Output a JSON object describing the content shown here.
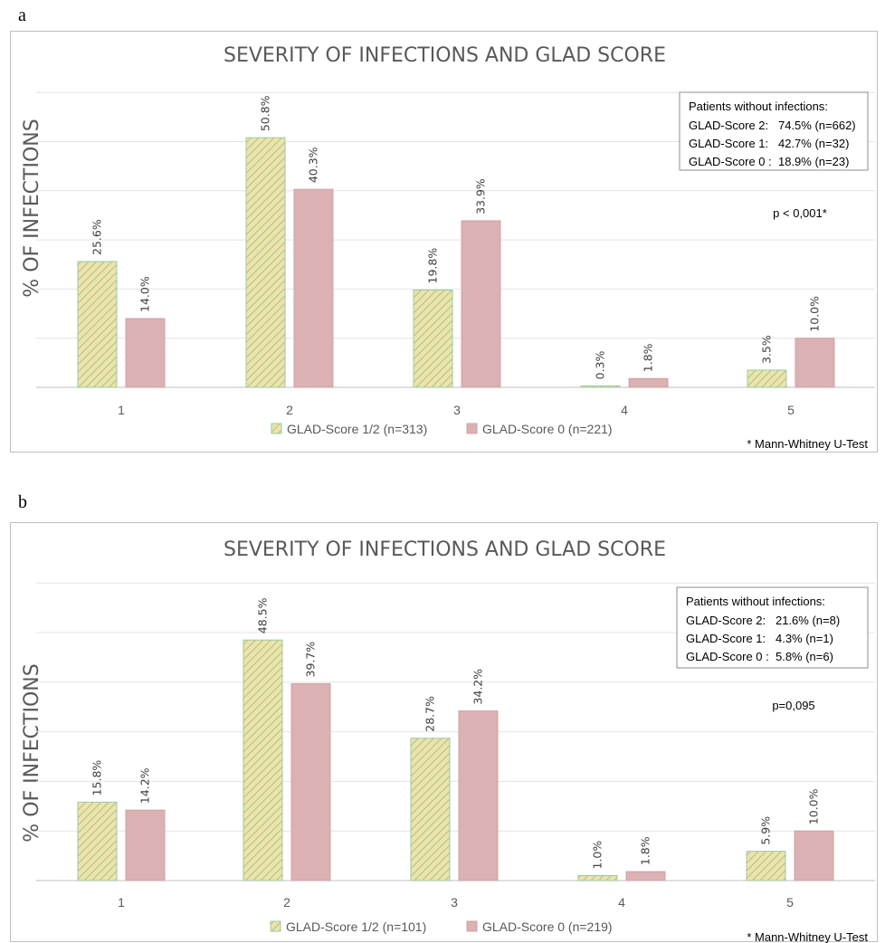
{
  "chart_data": [
    {
      "panel": "a",
      "type": "bar",
      "title": "SEVERITY OF INFECTIONS AND GLAD SCORE",
      "ylabel": "% OF INFECTIONS",
      "xlabel": "",
      "ylim": [
        0,
        60
      ],
      "grid": true,
      "legend_position": "bottom",
      "categories": [
        "1",
        "2",
        "3",
        "4",
        "5"
      ],
      "series": [
        {
          "name": "GLAD-Score 1/2 (n=313)",
          "color": "#f1e3a6",
          "pattern": "hatched-green",
          "values": [
            25.6,
            50.8,
            19.8,
            0.3,
            3.5
          ],
          "labels": [
            "25.6%",
            "50.8%",
            "19.8%",
            "0.3%",
            "3.5%"
          ]
        },
        {
          "name": "GLAD-Score 0 (n=221)",
          "color": "#dbb1b3",
          "values": [
            14.0,
            40.3,
            33.9,
            1.8,
            10.0
          ],
          "labels": [
            "14.0%",
            "40.3%",
            "33.9%",
            "1.8%",
            "10.0%"
          ]
        }
      ],
      "info_box": {
        "title": "Patients without infections:",
        "rows": [
          "GLAD-Score 2:   74.5% (n=662)",
          "GLAD-Score 1:   42.7% (n=32)",
          "GLAD-Score 0 :  18.9% (n=23)"
        ]
      },
      "pvalue": "p < 0,001*",
      "footnote": "* Mann-Whitney U-Test"
    },
    {
      "panel": "b",
      "type": "bar",
      "title": "SEVERITY OF INFECTIONS AND GLAD SCORE",
      "ylabel": "% OF INFECTIONS",
      "xlabel": "",
      "ylim": [
        0,
        60
      ],
      "grid": true,
      "legend_position": "bottom",
      "categories": [
        "1",
        "2",
        "3",
        "4",
        "5"
      ],
      "series": [
        {
          "name": "GLAD-Score 1/2 (n=101)",
          "color": "#f1e3a6",
          "pattern": "hatched-green",
          "values": [
            15.8,
            48.5,
            28.7,
            1.0,
            5.9
          ],
          "labels": [
            "15.8%",
            "48.5%",
            "28.7%",
            "1.0%",
            "5.9%"
          ]
        },
        {
          "name": "GLAD-Score 0 (n=219)",
          "color": "#dbb1b3",
          "values": [
            14.2,
            39.7,
            34.2,
            1.8,
            10.0
          ],
          "labels": [
            "14.2%",
            "39.7%",
            "34.2%",
            "1.8%",
            "10.0%"
          ]
        }
      ],
      "info_box": {
        "title": "Patients without infections:",
        "rows": [
          "GLAD-Score 2:   21.6% (n=8)",
          "GLAD-Score 1:   4.3% (n=1)",
          "GLAD-Score 0 :  5.8% (n=6)"
        ]
      },
      "pvalue": "p=0,095",
      "footnote": "* Mann-Whitney U-Test"
    }
  ]
}
